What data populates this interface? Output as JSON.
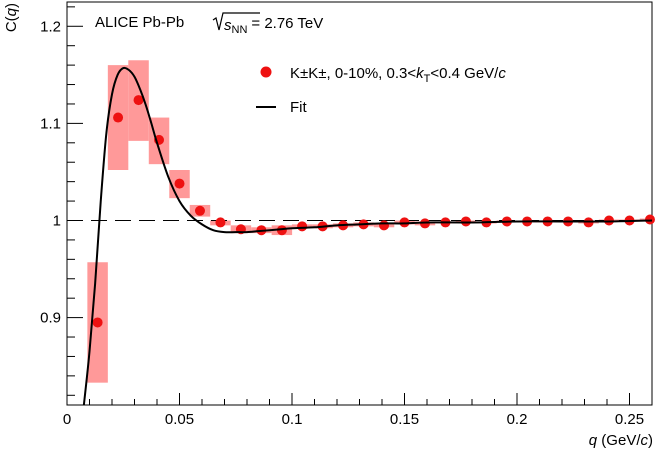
{
  "chart_data": {
    "type": "scatter",
    "header": {
      "experiment": "ALICE Pb-Pb",
      "energy_symbol": "s",
      "energy_subscript": "NN",
      "energy_value": "= 2.76 TeV"
    },
    "xlabel_var": "q",
    "xlabel_unit_open": " (GeV/",
    "xlabel_unit_var": "c",
    "xlabel_unit_close": ")",
    "ylabel_prefix": "C(",
    "ylabel_var": "q",
    "ylabel_suffix": ")",
    "xlim": [
      0,
      0.26
    ],
    "ylim": [
      0.81,
      1.225
    ],
    "x_ticks": [
      0,
      0.05,
      0.1,
      0.15,
      0.2,
      0.25
    ],
    "x_tick_labels": [
      "0",
      "0.05",
      "0.1",
      "0.15",
      "0.2",
      "0.25"
    ],
    "y_ticks": [
      0.9,
      1.0,
      1.1,
      1.2
    ],
    "y_tick_labels": [
      "0.9",
      "1",
      "1.1",
      "1.2"
    ],
    "reference_line": 1.0,
    "legend": {
      "position": "top-right",
      "marker_label": {
        "particles": "K±K±",
        "centrality": ", 0-10%, 0.3<",
        "kt_var": "k",
        "kt_sub": "T",
        "kt_range": "<0.4 GeV/",
        "c_var": "c"
      },
      "fit_label": "Fit"
    },
    "colors": {
      "points": "#ee1111",
      "systematics": "#ff9999",
      "fit": "#000000",
      "reference": "#000000"
    },
    "series": [
      {
        "x": [
          0.0136,
          0.0227,
          0.0318,
          0.0409,
          0.05,
          0.0591,
          0.0682,
          0.0773,
          0.0864,
          0.0955,
          0.1045,
          0.1136,
          0.1227,
          0.1318,
          0.1409,
          0.15,
          0.1591,
          0.1682,
          0.1773,
          0.1864,
          0.1955,
          0.2045,
          0.2136,
          0.2227,
          0.2318,
          0.2409,
          0.25,
          0.2591
        ],
        "y": [
          0.895,
          1.106,
          1.124,
          1.083,
          1.038,
          1.01,
          0.998,
          0.991,
          0.99,
          0.99,
          0.994,
          0.994,
          0.995,
          0.996,
          0.995,
          0.998,
          0.997,
          0.998,
          0.999,
          0.998,
          0.999,
          0.999,
          0.999,
          0.999,
          0.998,
          1.0,
          1.0,
          1.001
        ],
        "sys_low": [
          0.833,
          1.052,
          1.082,
          1.058,
          1.023,
          1.004,
          0.995,
          0.987,
          0.987,
          0.985,
          0.992,
          0.992,
          0.993,
          0.994,
          0.993,
          0.996,
          0.995,
          0.997,
          0.998,
          0.997,
          0.998,
          0.998,
          0.998,
          0.998,
          0.997,
          0.999,
          0.999,
          1.0
        ],
        "sys_high": [
          0.957,
          1.16,
          1.165,
          1.106,
          1.052,
          1.016,
          1.0,
          0.995,
          0.993,
          0.995,
          0.996,
          0.996,
          0.997,
          0.998,
          0.997,
          1.0,
          0.999,
          0.999,
          1.0,
          0.999,
          1.0,
          1.0,
          1.0,
          1.0,
          0.999,
          1.001,
          1.001,
          1.002
        ]
      }
    ],
    "fit_curve": {
      "x": [
        0.0075,
        0.01,
        0.0125,
        0.015,
        0.0175,
        0.02,
        0.0225,
        0.025,
        0.0275,
        0.03,
        0.0325,
        0.035,
        0.0375,
        0.04,
        0.045,
        0.05,
        0.055,
        0.06,
        0.065,
        0.07,
        0.075,
        0.08,
        0.085,
        0.09,
        0.095,
        0.1,
        0.11,
        0.12,
        0.13,
        0.14,
        0.15,
        0.16,
        0.18,
        0.2,
        0.22,
        0.24,
        0.26
      ],
      "y": [
        0.81,
        0.865,
        0.935,
        1.02,
        1.09,
        1.13,
        1.15,
        1.157,
        1.155,
        1.148,
        1.135,
        1.119,
        1.1,
        1.08,
        1.045,
        1.02,
        1.005,
        0.996,
        0.99,
        0.988,
        0.988,
        0.988,
        0.989,
        0.99,
        0.991,
        0.992,
        0.993,
        0.995,
        0.996,
        0.997,
        0.997,
        0.998,
        0.998,
        0.999,
        0.999,
        0.999,
        1.0
      ]
    }
  }
}
